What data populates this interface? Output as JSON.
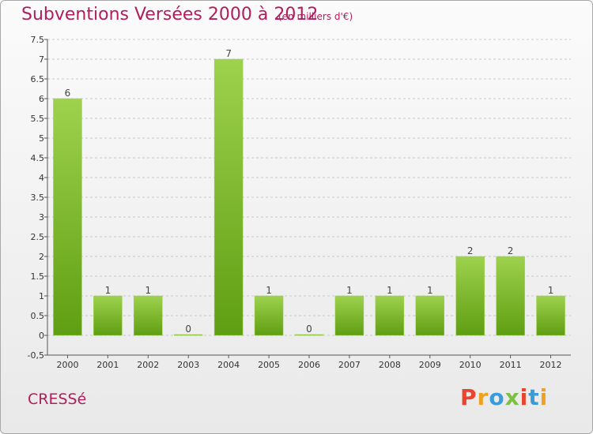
{
  "header": {
    "title": "Subventions Versées 2000 à 2012",
    "subtitle": "(en milliers d'€)"
  },
  "footer": {
    "commune": "CRESSé",
    "brand": {
      "letters": [
        "P",
        "r",
        "o",
        "x",
        "i",
        "t",
        "i"
      ],
      "colors": [
        "#e8442e",
        "#f0a020",
        "#3a9bd8",
        "#7bc043",
        "#e8442e",
        "#3a9bd8",
        "#f0a020"
      ]
    }
  },
  "colors": {
    "title": "#b01e5b",
    "bar_light": "#9ed24e",
    "bar_dark": "#5f9e12",
    "axis": "#555555",
    "grid": "#c8c8c8"
  },
  "chart_data": {
    "type": "bar",
    "title": "Subventions Versées 2000 à 2012",
    "subtitle": "(en milliers d'€)",
    "categories": [
      "2000",
      "2001",
      "2002",
      "2003",
      "2004",
      "2005",
      "2006",
      "2007",
      "2008",
      "2009",
      "2010",
      "2011",
      "2012"
    ],
    "values": [
      6,
      1,
      1,
      0,
      7,
      1,
      0,
      1,
      1,
      1,
      2,
      2,
      1
    ],
    "data_labels": [
      "6",
      "1",
      "1",
      "0",
      "7",
      "1",
      "0",
      "1",
      "1",
      "1",
      "2",
      "2",
      "1"
    ],
    "ylim": [
      -0.5,
      7.5
    ],
    "yticks": [
      "-0,5",
      "0",
      "0.5",
      "1",
      "1.5",
      "2",
      "2.5",
      "3",
      "3.5",
      "4",
      "4.5",
      "5",
      "5.5",
      "6",
      "6.5",
      "7",
      "7.5"
    ],
    "ytick_values": [
      -0.5,
      0,
      0.5,
      1,
      1.5,
      2,
      2.5,
      3,
      3.5,
      4,
      4.5,
      5,
      5.5,
      6,
      6.5,
      7,
      7.5
    ],
    "grid": true,
    "grid_style": "dashed-horizontal"
  }
}
